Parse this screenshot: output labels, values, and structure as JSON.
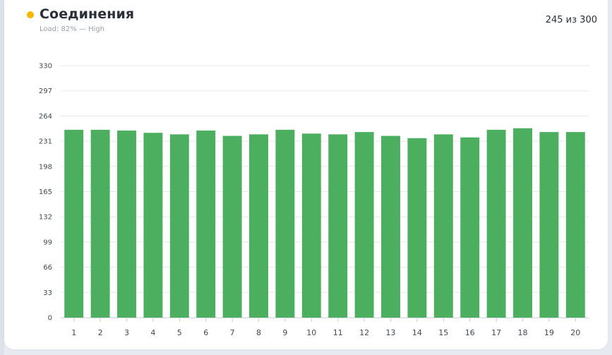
{
  "header": {
    "title": "Соединения",
    "subtitle": "Load: 82% — High",
    "count_text": "245 из 300",
    "status_color": "#f5b800"
  },
  "chart_data": {
    "type": "bar",
    "title": "",
    "xlabel": "",
    "ylabel": "",
    "ylim": [
      0,
      330
    ],
    "yticks": [
      0,
      33,
      66,
      99,
      132,
      165,
      198,
      231,
      264,
      297,
      330
    ],
    "grid": true,
    "bar_color": "#4caf5f",
    "categories": [
      "1",
      "2",
      "3",
      "4",
      "5",
      "6",
      "7",
      "8",
      "9",
      "10",
      "11",
      "12",
      "13",
      "14",
      "15",
      "16",
      "17",
      "18",
      "19",
      "20"
    ],
    "values": [
      246,
      246,
      245,
      242,
      240,
      245,
      238,
      240,
      246,
      241,
      240,
      243,
      238,
      235,
      240,
      236,
      246,
      248,
      243,
      243
    ]
  }
}
